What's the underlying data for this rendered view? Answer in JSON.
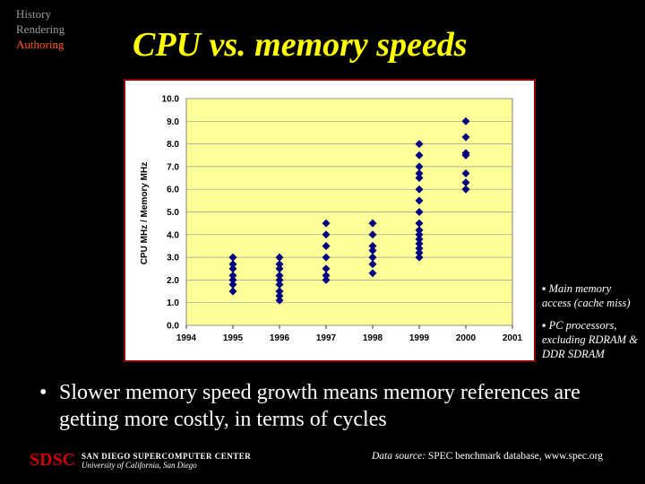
{
  "nav": {
    "items": [
      "History",
      "Rendering",
      "Authoring"
    ],
    "active_index": 2
  },
  "slide": {
    "title": "CPU vs. memory speeds",
    "notes": [
      "Main memory access (cache miss)",
      "PC processors, excluding RDRAM & DDR SDRAM"
    ],
    "bullet": "Slower memory speed growth means memory references are getting more costly, in terms of cycles",
    "logo": "SDSC",
    "org_line1": "SAN DIEGO SUPERCOMPUTER CENTER",
    "org_line2": "University of California, San Diego",
    "source_label": "Data source:",
    "source_text": "SPEC benchmark database, www.spec.org"
  },
  "colors": {
    "background": "#000000",
    "title": "#ffff00",
    "plot_bg": "#ffff99",
    "frame": "#8b0000",
    "marker": "#000080",
    "nav_active": "#ff5a1a",
    "logo": "#cc0000"
  },
  "chart_data": {
    "type": "scatter",
    "title": "",
    "xlabel": "",
    "ylabel": "CPU MHz / Memory MHz",
    "xlim": [
      1994,
      2001
    ],
    "ylim": [
      0.0,
      10.0
    ],
    "xticks": [
      "1994",
      "1995",
      "1996",
      "1997",
      "1998",
      "1999",
      "2000",
      "2001"
    ],
    "yticks": [
      "0.0",
      "1.0",
      "2.0",
      "3.0",
      "4.0",
      "5.0",
      "6.0",
      "7.0",
      "8.0",
      "9.0",
      "10.0"
    ],
    "grid": true,
    "marker": "diamond",
    "points": [
      {
        "x": 1995,
        "y": 3.0
      },
      {
        "x": 1995,
        "y": 2.7
      },
      {
        "x": 1995,
        "y": 2.5
      },
      {
        "x": 1995,
        "y": 2.2
      },
      {
        "x": 1995,
        "y": 2.0
      },
      {
        "x": 1995,
        "y": 1.8
      },
      {
        "x": 1995,
        "y": 1.5
      },
      {
        "x": 1996,
        "y": 3.0
      },
      {
        "x": 1996,
        "y": 2.7
      },
      {
        "x": 1996,
        "y": 2.5
      },
      {
        "x": 1996,
        "y": 2.2
      },
      {
        "x": 1996,
        "y": 2.0
      },
      {
        "x": 1996,
        "y": 1.8
      },
      {
        "x": 1996,
        "y": 1.5
      },
      {
        "x": 1996,
        "y": 1.3
      },
      {
        "x": 1996,
        "y": 1.1
      },
      {
        "x": 1997,
        "y": 4.5
      },
      {
        "x": 1997,
        "y": 4.0
      },
      {
        "x": 1997,
        "y": 3.5
      },
      {
        "x": 1997,
        "y": 3.0
      },
      {
        "x": 1997,
        "y": 2.5
      },
      {
        "x": 1997,
        "y": 2.2
      },
      {
        "x": 1997,
        "y": 2.0
      },
      {
        "x": 1998,
        "y": 4.5
      },
      {
        "x": 1998,
        "y": 4.0
      },
      {
        "x": 1998,
        "y": 3.5
      },
      {
        "x": 1998,
        "y": 3.3
      },
      {
        "x": 1998,
        "y": 3.0
      },
      {
        "x": 1998,
        "y": 2.7
      },
      {
        "x": 1998,
        "y": 2.3
      },
      {
        "x": 1999,
        "y": 8.0
      },
      {
        "x": 1999,
        "y": 7.5
      },
      {
        "x": 1999,
        "y": 7.0
      },
      {
        "x": 1999,
        "y": 6.7
      },
      {
        "x": 1999,
        "y": 6.5
      },
      {
        "x": 1999,
        "y": 6.0
      },
      {
        "x": 1999,
        "y": 5.5
      },
      {
        "x": 1999,
        "y": 5.0
      },
      {
        "x": 1999,
        "y": 4.5
      },
      {
        "x": 1999,
        "y": 4.2
      },
      {
        "x": 1999,
        "y": 4.0
      },
      {
        "x": 1999,
        "y": 3.8
      },
      {
        "x": 1999,
        "y": 3.6
      },
      {
        "x": 1999,
        "y": 3.4
      },
      {
        "x": 1999,
        "y": 3.2
      },
      {
        "x": 1999,
        "y": 3.0
      },
      {
        "x": 2000,
        "y": 9.0
      },
      {
        "x": 2000,
        "y": 8.3
      },
      {
        "x": 2000,
        "y": 7.6
      },
      {
        "x": 2000,
        "y": 7.5
      },
      {
        "x": 2000,
        "y": 6.7
      },
      {
        "x": 2000,
        "y": 6.3
      },
      {
        "x": 2000,
        "y": 6.0
      }
    ]
  }
}
